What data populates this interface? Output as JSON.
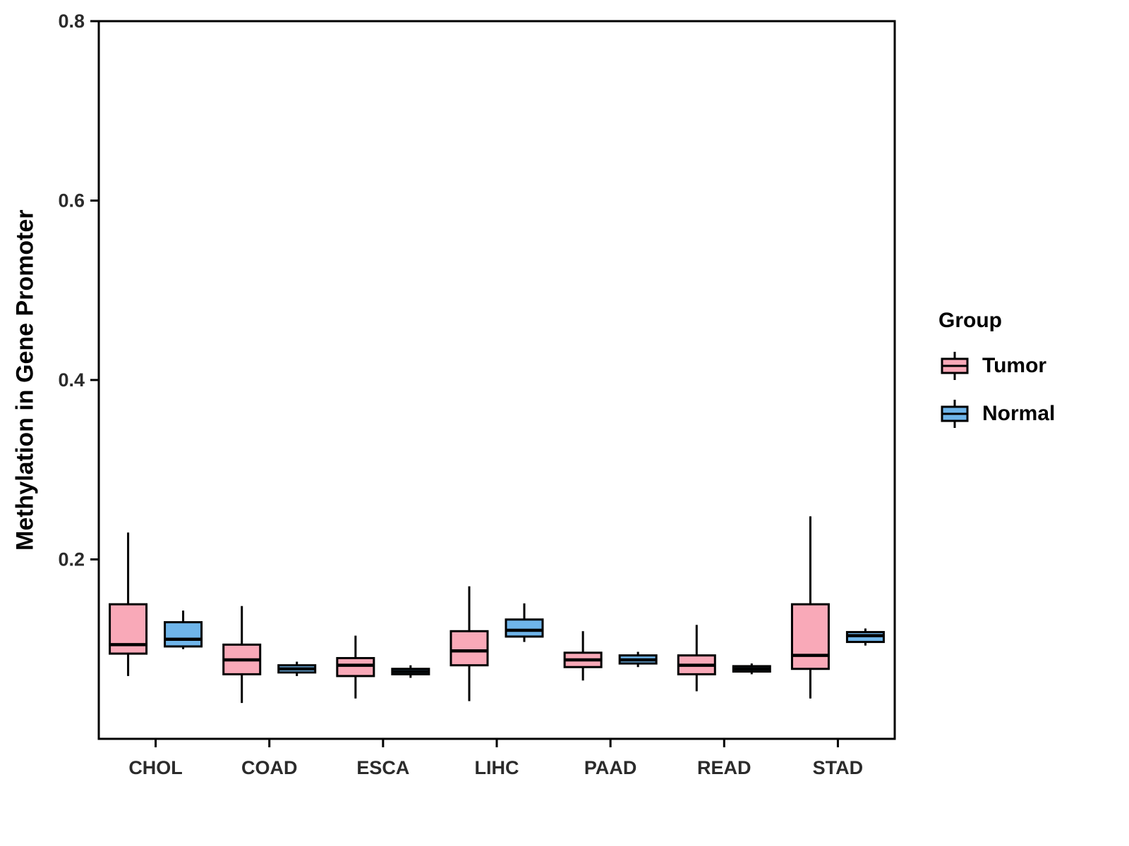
{
  "chart_data": {
    "type": "boxplot",
    "title": "",
    "xlabel": "",
    "ylabel": "Methylation in Gene Promoter",
    "ylim": [
      0,
      0.8
    ],
    "yticks": [
      0.2,
      0.4,
      0.6,
      0.8
    ],
    "grid": false,
    "categories": [
      "CHOL",
      "COAD",
      "ESCA",
      "LIHC",
      "PAAD",
      "READ",
      "STAD"
    ],
    "legend": {
      "title": "Group",
      "position": "right",
      "items": [
        {
          "label": "Tumor",
          "color": "#F9A9B8"
        },
        {
          "label": "Normal",
          "color": "#6FB5EA"
        }
      ]
    },
    "series": [
      {
        "name": "Tumor",
        "color": "#F9A9B8",
        "boxes": [
          {
            "category": "CHOL",
            "whisker_low": 0.07,
            "q1": 0.095,
            "median": 0.105,
            "q3": 0.15,
            "whisker_high": 0.23
          },
          {
            "category": "COAD",
            "whisker_low": 0.04,
            "q1": 0.072,
            "median": 0.088,
            "q3": 0.105,
            "whisker_high": 0.148
          },
          {
            "category": "ESCA",
            "whisker_low": 0.045,
            "q1": 0.07,
            "median": 0.082,
            "q3": 0.09,
            "whisker_high": 0.115
          },
          {
            "category": "LIHC",
            "whisker_low": 0.042,
            "q1": 0.082,
            "median": 0.098,
            "q3": 0.12,
            "whisker_high": 0.17
          },
          {
            "category": "PAAD",
            "whisker_low": 0.065,
            "q1": 0.08,
            "median": 0.088,
            "q3": 0.096,
            "whisker_high": 0.12
          },
          {
            "category": "READ",
            "whisker_low": 0.053,
            "q1": 0.072,
            "median": 0.082,
            "q3": 0.093,
            "whisker_high": 0.127
          },
          {
            "category": "STAD",
            "whisker_low": 0.045,
            "q1": 0.078,
            "median": 0.093,
            "q3": 0.15,
            "whisker_high": 0.248
          }
        ]
      },
      {
        "name": "Normal",
        "color": "#6FB5EA",
        "boxes": [
          {
            "category": "CHOL",
            "whisker_low": 0.1,
            "q1": 0.103,
            "median": 0.111,
            "q3": 0.13,
            "whisker_high": 0.143
          },
          {
            "category": "COAD",
            "whisker_low": 0.07,
            "q1": 0.074,
            "median": 0.078,
            "q3": 0.082,
            "whisker_high": 0.086
          },
          {
            "category": "ESCA",
            "whisker_low": 0.068,
            "q1": 0.072,
            "median": 0.075,
            "q3": 0.078,
            "whisker_high": 0.082
          },
          {
            "category": "LIHC",
            "whisker_low": 0.108,
            "q1": 0.114,
            "median": 0.121,
            "q3": 0.133,
            "whisker_high": 0.151
          },
          {
            "category": "PAAD",
            "whisker_low": 0.08,
            "q1": 0.084,
            "median": 0.088,
            "q3": 0.093,
            "whisker_high": 0.097
          },
          {
            "category": "READ",
            "whisker_low": 0.072,
            "q1": 0.075,
            "median": 0.078,
            "q3": 0.081,
            "whisker_high": 0.084
          },
          {
            "category": "STAD",
            "whisker_low": 0.104,
            "q1": 0.108,
            "median": 0.115,
            "q3": 0.119,
            "whisker_high": 0.123
          }
        ]
      }
    ]
  }
}
